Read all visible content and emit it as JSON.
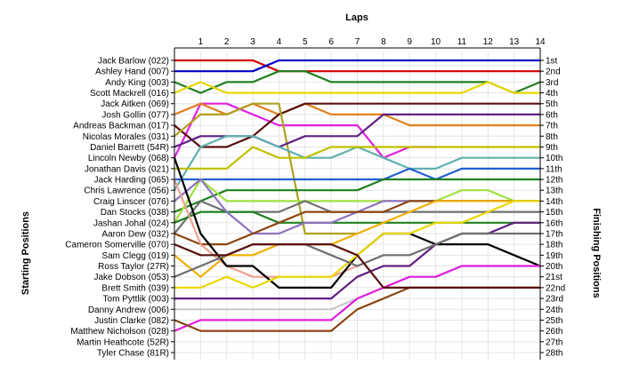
{
  "chart_data": {
    "type": "line",
    "title": "Laps",
    "ylabel_left": "Starting Positions",
    "ylabel_right": "Finishing Positions",
    "x_ticks": [
      1,
      2,
      3,
      4,
      5,
      6,
      7,
      8,
      9,
      10,
      11,
      12,
      13,
      14
    ],
    "x_range": [
      0,
      14
    ],
    "y_range": [
      1,
      28
    ],
    "y_inverted": true,
    "grid": true,
    "starting_labels": [
      "Jack Barlow (022)",
      "Ashley Hand (007)",
      "Andy King (003)",
      "Scott Mackrell (016)",
      "Jack Aitken (069)",
      "Josh Gollin (077)",
      "Andreas Backman (017)",
      "Nicolas Morales (031)",
      "Daniel Barrett (54R)",
      "Lincoln Newby (068)",
      "Jonathan Davis (021)",
      "Jack Harding (065)",
      "Chris Lawrence (056)",
      "Craig Linscer (076)",
      "Dan Stocks (038)",
      "Jashan Johal (024)",
      "Aaron Dew (032)",
      "Cameron Somerville (070)",
      "Sam Clegg (019)",
      "Ross Taylor (27R)",
      "Jake Dobson (053)",
      "Brett Smith (039)",
      "Tom Pyttlik (003)",
      "Danny Andrew (006)",
      "Justin Clarke (082)",
      "Matthew Nicholson (028)",
      "Martin Heathcote (52R)",
      "Tyler Chase (81R)"
    ],
    "finishing_labels": [
      "1st",
      "2nd",
      "3rd",
      "4th",
      "5th",
      "6th",
      "7th",
      "8th",
      "9th",
      "10th",
      "11th",
      "12th",
      "13th",
      "14th",
      "15th",
      "16th",
      "17th",
      "18th",
      "19th",
      "20th",
      "21st",
      "22nd",
      "23rd",
      "24th",
      "25th",
      "26th",
      "27th",
      "28th"
    ],
    "series": [
      {
        "color": "#d00000",
        "values": [
          1,
          1,
          1,
          1,
          2,
          2,
          2,
          2,
          2,
          2,
          2,
          2,
          2,
          2,
          2
        ]
      },
      {
        "color": "#0000c8",
        "values": [
          2,
          2,
          2,
          2,
          1,
          1,
          1,
          1,
          1,
          1,
          1,
          1,
          1,
          1,
          1
        ]
      },
      {
        "color": "#208020",
        "values": [
          3,
          4,
          3,
          3,
          2,
          2,
          3,
          3,
          3,
          3,
          3,
          3,
          3,
          4,
          3
        ]
      },
      {
        "color": "#e8d800",
        "values": [
          4,
          3,
          4,
          4,
          4,
          4,
          4,
          4,
          4,
          4,
          4,
          4,
          3,
          4,
          4
        ]
      },
      {
        "color": "#e020e0",
        "values": [
          10,
          5,
          5,
          6,
          7,
          7,
          7,
          7,
          10,
          9,
          9,
          null,
          null,
          null,
          null
        ]
      },
      {
        "color": "#e08020",
        "values": [
          6,
          5,
          6,
          5,
          6,
          5,
          6,
          6,
          6,
          7,
          7,
          7,
          7,
          7,
          7
        ]
      },
      {
        "color": "#5a1010",
        "values": [
          7,
          9,
          9,
          8,
          6,
          5,
          5,
          5,
          5,
          5,
          5,
          5,
          5,
          5,
          5
        ]
      },
      {
        "color": "#b0a020",
        "values": [
          8,
          6,
          6,
          5,
          5,
          17,
          17,
          17,
          null,
          null,
          null,
          null,
          null,
          null,
          null
        ]
      },
      {
        "color": "#602080",
        "values": [
          9,
          8,
          8,
          8,
          9,
          8,
          8,
          8,
          6,
          6,
          6,
          6,
          6,
          6,
          6
        ]
      },
      {
        "color": "#60b0b0",
        "values": [
          13,
          9,
          8,
          8,
          9,
          10,
          10,
          9,
          10,
          11,
          11,
          10,
          10,
          10,
          10
        ]
      },
      {
        "color": "#c0c000",
        "values": [
          11,
          11,
          11,
          9,
          10,
          10,
          9,
          9,
          9,
          9,
          9,
          9,
          9,
          9,
          9
        ]
      },
      {
        "color": "#2060d0",
        "values": [
          12,
          12,
          12,
          12,
          12,
          12,
          12,
          12,
          12,
          11,
          12,
          11,
          11,
          11,
          11
        ]
      },
      {
        "color": "#208020",
        "values": [
          15,
          14,
          13,
          13,
          13,
          13,
          13,
          13,
          12,
          12,
          12,
          12,
          12,
          12,
          12
        ]
      },
      {
        "color": "#a0e040",
        "values": [
          16,
          12,
          14,
          14,
          14,
          14,
          14,
          14,
          14,
          14,
          14,
          13,
          13,
          14,
          14
        ]
      },
      {
        "color": "#707070",
        "values": [
          17,
          14,
          15,
          15,
          15,
          14,
          15,
          15,
          15,
          15,
          15,
          15,
          15,
          15,
          15
        ]
      },
      {
        "color": "#208020",
        "values": [
          16,
          15,
          15,
          15,
          16,
          16,
          16,
          16,
          16,
          16,
          16,
          16,
          16,
          16,
          16
        ]
      },
      {
        "color": "#9070c0",
        "values": [
          14,
          12,
          15,
          17,
          17,
          16,
          16,
          15,
          14,
          14,
          14,
          14,
          14,
          14,
          14
        ]
      },
      {
        "color": "#8b4513",
        "values": [
          17,
          18,
          18,
          17,
          16,
          15,
          15,
          15,
          15,
          14,
          14,
          14,
          14,
          14,
          14
        ]
      },
      {
        "color": "#f0b000",
        "values": [
          19,
          21,
          19,
          19,
          18,
          18,
          18,
          17,
          16,
          15,
          14,
          14,
          14,
          14,
          14
        ]
      },
      {
        "color": "#f0a090",
        "values": [
          12,
          18,
          20,
          21,
          21,
          21,
          21,
          20,
          null,
          null,
          null,
          null,
          null,
          null,
          null
        ]
      },
      {
        "color": "#000000",
        "values": [
          10,
          17,
          20,
          20,
          22,
          22,
          22,
          19,
          17,
          17,
          18,
          18,
          18,
          19,
          20
        ]
      },
      {
        "color": "#e8d800",
        "values": [
          22,
          22,
          21,
          22,
          21,
          21,
          21,
          19,
          17,
          17,
          16,
          16,
          15,
          14,
          14
        ]
      },
      {
        "color": "#602080",
        "values": [
          23,
          23,
          23,
          23,
          23,
          23,
          23,
          21,
          20,
          20,
          18,
          17,
          17,
          16,
          16
        ]
      },
      {
        "color": "#c8c8c8",
        "values": [
          24,
          24,
          24,
          24,
          24,
          24,
          24,
          23,
          22,
          21,
          21,
          20,
          20,
          20,
          20
        ]
      },
      {
        "color": "#e020e0",
        "values": [
          26,
          25,
          25,
          25,
          25,
          25,
          25,
          23,
          22,
          21,
          21,
          20,
          20,
          20,
          20
        ]
      },
      {
        "color": "#8b4513",
        "values": [
          25,
          26,
          26,
          26,
          26,
          26,
          26,
          24,
          23,
          22,
          22,
          22,
          22,
          22,
          22
        ]
      },
      {
        "color": "#707070",
        "values": [
          21,
          20,
          19,
          18,
          18,
          18,
          19,
          20,
          19,
          19,
          18,
          17,
          17,
          17,
          17
        ]
      },
      {
        "color": "#5a1010",
        "values": [
          18,
          19,
          19,
          18,
          18,
          18,
          18,
          19,
          22,
          22,
          22,
          22,
          22,
          22,
          22
        ]
      }
    ]
  }
}
